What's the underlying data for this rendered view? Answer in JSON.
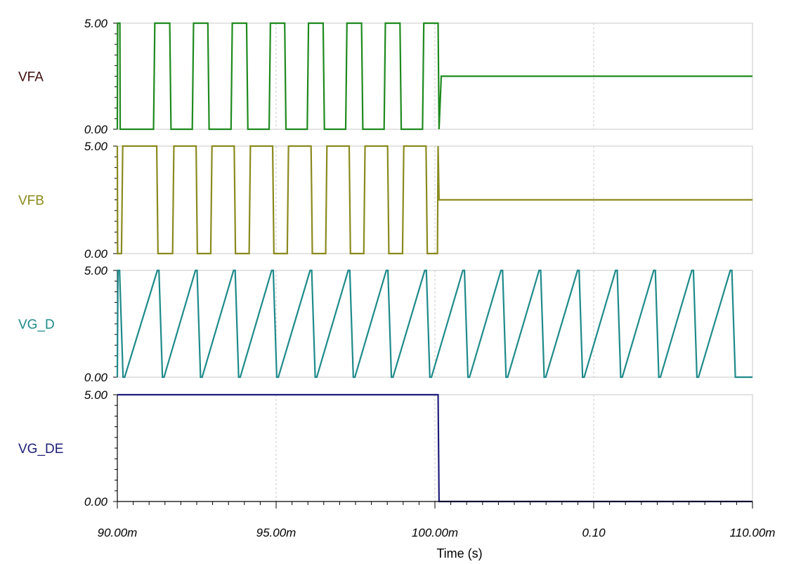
{
  "chart_data": {
    "type": "line",
    "xlabel": "Time (s)",
    "xlim": [
      0.09,
      0.11
    ],
    "x_ticks": [
      {
        "value": 0.09,
        "label": "90.00m"
      },
      {
        "value": 0.095,
        "label": "95.00m"
      },
      {
        "value": 0.1,
        "label": "100.00m"
      },
      {
        "value": 0.105,
        "label": "0.10"
      },
      {
        "value": 0.11,
        "label": "110.00m"
      }
    ],
    "ylim": [
      0,
      5
    ],
    "y_tick_labels": [
      "5.00",
      "0.00"
    ],
    "grid": "vertical-dashed",
    "series": [
      {
        "name": "VFA",
        "color": "#1e8a1e",
        "label_color": "#3d0b0b",
        "x": [
          0.09,
          0.09001,
          0.09008,
          0.09009,
          0.09114,
          0.09118,
          0.09165,
          0.09169,
          0.09236,
          0.0924,
          0.09285,
          0.09289,
          0.09358,
          0.09362,
          0.09407,
          0.09411,
          0.09478,
          0.09482,
          0.09527,
          0.09531,
          0.09598,
          0.09602,
          0.09648,
          0.09652,
          0.09719,
          0.09723,
          0.09769,
          0.09773,
          0.0984,
          0.09844,
          0.0989,
          0.09894,
          0.09961,
          0.09965,
          0.1001,
          0.10013,
          0.1002,
          0.11
        ],
        "y": [
          0,
          5,
          5,
          0,
          0,
          5,
          5,
          0,
          0,
          5,
          5,
          0,
          0,
          5,
          5,
          0,
          0,
          5,
          5,
          0,
          0,
          5,
          5,
          0,
          0,
          5,
          5,
          0,
          0,
          5,
          5,
          0,
          0,
          5,
          5,
          0,
          2.5,
          2.5
        ]
      },
      {
        "name": "VFB",
        "color": "#8a8a1e",
        "label_color": "#8a8a1e",
        "x": [
          0.09,
          0.09001,
          0.09013,
          0.09017,
          0.09124,
          0.09128,
          0.09174,
          0.09178,
          0.09248,
          0.09252,
          0.09294,
          0.09298,
          0.09368,
          0.09372,
          0.09415,
          0.09419,
          0.09489,
          0.09493,
          0.09535,
          0.09539,
          0.0961,
          0.09614,
          0.09656,
          0.0966,
          0.0973,
          0.09734,
          0.09776,
          0.0978,
          0.09851,
          0.09855,
          0.09898,
          0.09902,
          0.09972,
          0.09976,
          0.10008,
          0.1001,
          0.10013,
          0.11
        ],
        "y": [
          5,
          0,
          0,
          5,
          5,
          0,
          0,
          5,
          5,
          0,
          0,
          5,
          5,
          0,
          0,
          5,
          5,
          0,
          0,
          5,
          5,
          0,
          0,
          5,
          5,
          0,
          0,
          5,
          5,
          0,
          0,
          5,
          5,
          0,
          0,
          5,
          2.5,
          2.5
        ]
      },
      {
        "name": "VG_D",
        "color": "#1e8a8a",
        "label_color": "#1e8a8a",
        "x": [
          0.09,
          0.09002,
          0.09007,
          0.09018,
          0.09023,
          0.09126,
          0.09131,
          0.09142,
          0.09147,
          0.09246,
          0.09251,
          0.09262,
          0.09267,
          0.09366,
          0.09371,
          0.09382,
          0.09387,
          0.09486,
          0.09491,
          0.09502,
          0.09507,
          0.09607,
          0.09612,
          0.09623,
          0.09628,
          0.09727,
          0.09732,
          0.09743,
          0.09748,
          0.09847,
          0.09852,
          0.09863,
          0.09868,
          0.09968,
          0.09973,
          0.09984,
          0.09989,
          0.10088,
          0.10093,
          0.10104,
          0.10109,
          0.10208,
          0.10213,
          0.10224,
          0.10229,
          0.10328,
          0.10333,
          0.10344,
          0.10349,
          0.10449,
          0.10454,
          0.10465,
          0.1047,
          0.10569,
          0.10574,
          0.10585,
          0.1059,
          0.10689,
          0.10694,
          0.10705,
          0.1071,
          0.10809,
          0.10814,
          0.10825,
          0.1083,
          0.1093,
          0.10935,
          0.10946,
          0.10951,
          0.11
        ],
        "y": [
          0,
          5,
          5,
          0,
          0,
          5,
          5,
          0,
          0,
          5,
          5,
          0,
          0,
          5,
          5,
          0,
          0,
          5,
          5,
          0,
          0,
          5,
          5,
          0,
          0,
          5,
          5,
          0,
          0,
          5,
          5,
          0,
          0,
          5,
          5,
          0,
          0,
          5,
          5,
          0,
          0,
          5,
          5,
          0,
          0,
          5,
          5,
          0,
          0,
          5,
          5,
          0,
          0,
          5,
          5,
          0,
          0,
          5,
          5,
          0,
          0,
          5,
          5,
          0,
          0,
          5,
          5,
          0,
          0,
          0
        ]
      },
      {
        "name": "VG_DE",
        "color": "#1e1e7a",
        "label_color": "#1e1e7a",
        "x": [
          0.09,
          0.1001,
          0.10013,
          0.11
        ],
        "y": [
          5,
          5,
          0,
          0
        ]
      }
    ]
  }
}
